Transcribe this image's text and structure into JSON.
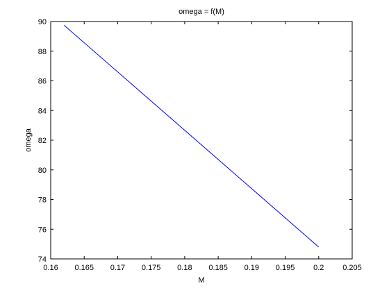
{
  "chart_data": {
    "type": "line",
    "title": "omega = f(M)",
    "xlabel": "M",
    "ylabel": "omega",
    "xlim": [
      0.16,
      0.205
    ],
    "ylim": [
      74,
      90
    ],
    "xticks": [
      "0.16",
      "0.165",
      "0.17",
      "0.175",
      "0.18",
      "0.185",
      "0.19",
      "0.195",
      "0.2",
      "0.205"
    ],
    "yticks": [
      "74",
      "76",
      "78",
      "80",
      "82",
      "84",
      "86",
      "88",
      "90"
    ],
    "grid": false,
    "series": [
      {
        "color": "#0000ff",
        "x": [
          0.162,
          0.2
        ],
        "y": [
          89.75,
          74.8
        ]
      }
    ]
  }
}
